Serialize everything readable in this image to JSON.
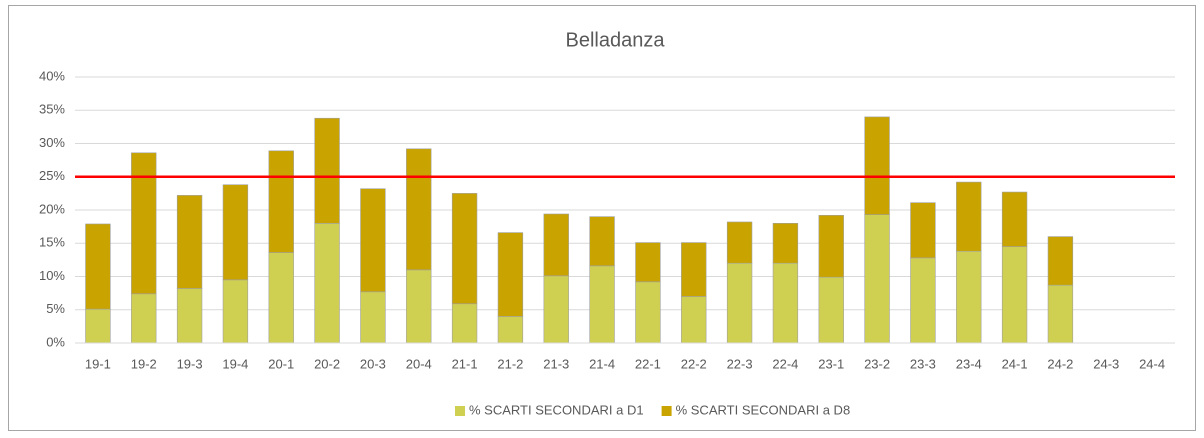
{
  "chart_data": {
    "type": "stacked_bar",
    "title": "Belladanza",
    "categories": [
      "19-1",
      "19-2",
      "19-3",
      "19-4",
      "20-1",
      "20-2",
      "20-3",
      "20-4",
      "21-1",
      "21-2",
      "21-3",
      "21-4",
      "22-1",
      "22-2",
      "22-3",
      "22-4",
      "23-1",
      "23-2",
      "23-3",
      "23-4",
      "24-1",
      "24-2",
      "24-3",
      "24-4"
    ],
    "series": [
      {
        "name": "% SCARTI SECONDARI a D1",
        "color": "#cfcf52",
        "values": [
          5.1,
          7.4,
          8.2,
          9.5,
          13.6,
          18.0,
          7.7,
          11.0,
          5.9,
          4.0,
          10.1,
          11.6,
          9.2,
          7.0,
          12.0,
          12.0,
          9.9,
          19.3,
          12.8,
          13.8,
          14.5,
          8.7,
          null,
          null
        ]
      },
      {
        "name": "% SCARTI SECONDARI a D8",
        "color": "#c9a400",
        "values": [
          12.8,
          21.2,
          14.0,
          14.3,
          15.3,
          15.8,
          15.5,
          18.2,
          16.6,
          12.6,
          9.3,
          7.4,
          5.9,
          8.1,
          6.2,
          6.0,
          9.3,
          14.7,
          8.3,
          10.4,
          8.2,
          7.3,
          null,
          null
        ]
      }
    ],
    "threshold": 25,
    "threshold_color": "#ff0000",
    "ylim": [
      0,
      40
    ],
    "yticks": [
      {
        "value": 0,
        "label": "0%"
      },
      {
        "value": 5,
        "label": "5%"
      },
      {
        "value": 10,
        "label": "10%"
      },
      {
        "value": 15,
        "label": "15%"
      },
      {
        "value": 20,
        "label": "20%"
      },
      {
        "value": 25,
        "label": "25%"
      },
      {
        "value": 30,
        "label": "30%"
      },
      {
        "value": 35,
        "label": "35%"
      },
      {
        "value": 40,
        "label": "40%"
      }
    ],
    "grid": true,
    "legend": "bottom"
  }
}
